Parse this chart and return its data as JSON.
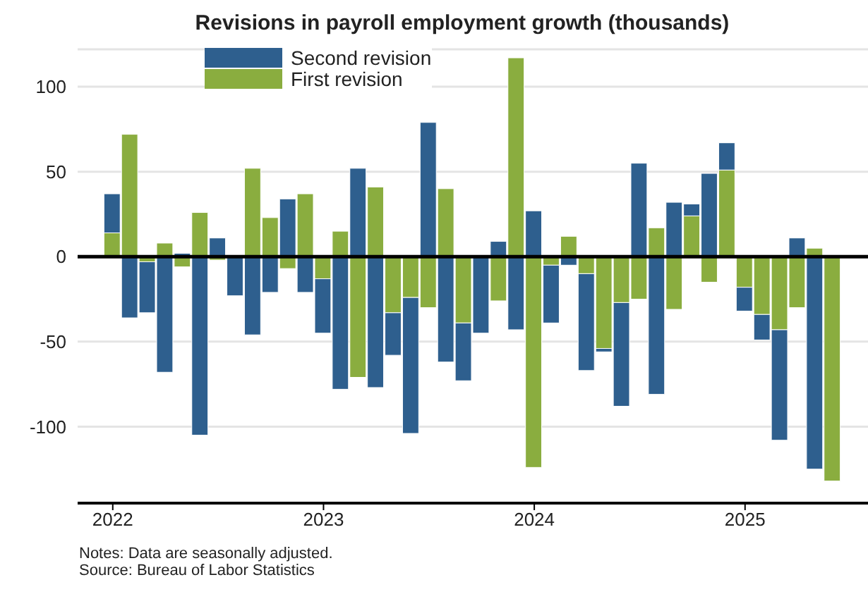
{
  "chart_data": {
    "type": "bar",
    "title": "Revisions in payroll employment growth (thousands)",
    "stacked": true,
    "x": [
      "2022-01",
      "2022-02",
      "2022-03",
      "2022-04",
      "2022-05",
      "2022-06",
      "2022-07",
      "2022-08",
      "2022-09",
      "2022-10",
      "2022-11",
      "2022-12",
      "2023-01",
      "2023-02",
      "2023-03",
      "2023-04",
      "2023-05",
      "2023-06",
      "2023-07",
      "2023-08",
      "2023-09",
      "2023-10",
      "2023-11",
      "2023-12",
      "2024-01",
      "2024-02",
      "2024-03",
      "2024-04",
      "2024-05",
      "2024-06",
      "2024-07",
      "2024-08",
      "2024-09",
      "2024-10",
      "2024-11",
      "2024-12",
      "2025-01",
      "2025-02",
      "2025-03",
      "2025-04",
      "2025-05",
      "2025-06"
    ],
    "series": [
      {
        "name": "First revision",
        "color": "#8aad3f",
        "values": [
          14,
          72,
          -3,
          8,
          -6,
          26,
          -2,
          0,
          52,
          23,
          -7,
          37,
          -13,
          15,
          -71,
          41,
          -33,
          -24,
          -30,
          40,
          -39,
          0,
          -26,
          117,
          -124,
          -5,
          12,
          -10,
          -54,
          -27,
          -25,
          17,
          -31,
          24,
          -15,
          51,
          -18,
          -34,
          -43,
          -30,
          5,
          -132
        ]
      },
      {
        "name": "Second revision",
        "color": "#2e5f8e",
        "values": [
          23,
          -36,
          -30,
          -68,
          2,
          -105,
          11,
          -23,
          -46,
          -21,
          34,
          -21,
          -32,
          -78,
          52,
          -77,
          -25,
          -80,
          79,
          -62,
          -34,
          -45,
          9,
          -43,
          27,
          -34,
          -5,
          -57,
          -2,
          -61,
          55,
          -81,
          32,
          7,
          49,
          16,
          -14,
          -15,
          -65,
          11,
          -125,
          null
        ]
      }
    ],
    "xlim": [
      "2021-11",
      "2025-08"
    ],
    "xticks": [
      "2022",
      "2023",
      "2024",
      "2025"
    ],
    "ylim": [
      -145,
      122
    ],
    "yticks": [
      -100,
      -50,
      0,
      50,
      100
    ],
    "grid": "y",
    "legend": "top left",
    "ref_lines": [
      {
        "axis": "y",
        "value": 0,
        "color": "#000000"
      }
    ],
    "annotations": [
      "Notes: Data are seasonally adjusted.",
      "Source: Bureau of Labor Statistics"
    ]
  }
}
